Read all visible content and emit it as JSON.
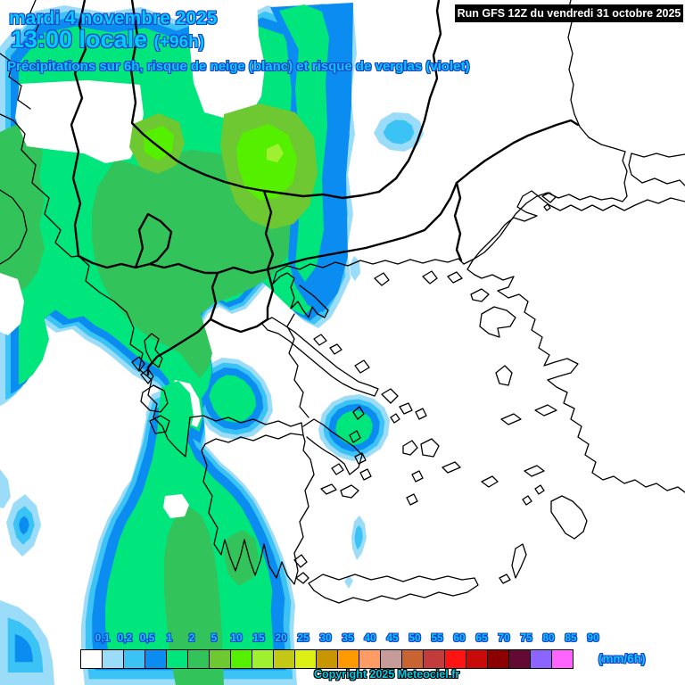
{
  "header": {
    "date_line": "mardi 4 novembre 2025",
    "time_value": "13:00 locale",
    "time_offset": "(+96h)",
    "subtitle": "Précipitations sur 6h, risque de neige (blanc) et risque de verglas (violet)",
    "run_label": "Run GFS 12Z du vendredi 31 octobre 2025",
    "title_color": "#00CCFF",
    "title_outline_color": "#1E3CC8"
  },
  "legend": {
    "unit_label": "(mm/6h)",
    "tick_labels": [
      "0,1",
      "0,2",
      "0,5",
      "1",
      "2",
      "5",
      "10",
      "15",
      "20",
      "25",
      "30",
      "35",
      "40",
      "45",
      "50",
      "55",
      "60",
      "65",
      "70",
      "75",
      "80",
      "85",
      "90"
    ],
    "swatch_colors": [
      "#FFFFFF",
      "#9BDCF8",
      "#3CC3F5",
      "#0A8CF0",
      "#00E67D",
      "#32C35A",
      "#6EC832",
      "#55F000",
      "#A0F032",
      "#C3C814",
      "#DCF014",
      "#C89600",
      "#FF9B00",
      "#FF9B64",
      "#C89B9B",
      "#C86432",
      "#C33C3C",
      "#FF1414",
      "#C80A0A",
      "#8C0000",
      "#640A32",
      "#8C64FF",
      "#FF64FF"
    ]
  },
  "footer": {
    "copyright": "Copyright 2025 Meteociel.fr"
  },
  "map": {
    "precip_fill_colors": {
      "pale_blue": "#9BDCF8",
      "cyan": "#3CC3F5",
      "blue": "#0A8CF0",
      "spring_green": "#00E67D",
      "sea_green": "#32C35A",
      "moss_green": "#6EC832",
      "lime": "#55F000",
      "yellow_green": "#A0F032"
    }
  }
}
